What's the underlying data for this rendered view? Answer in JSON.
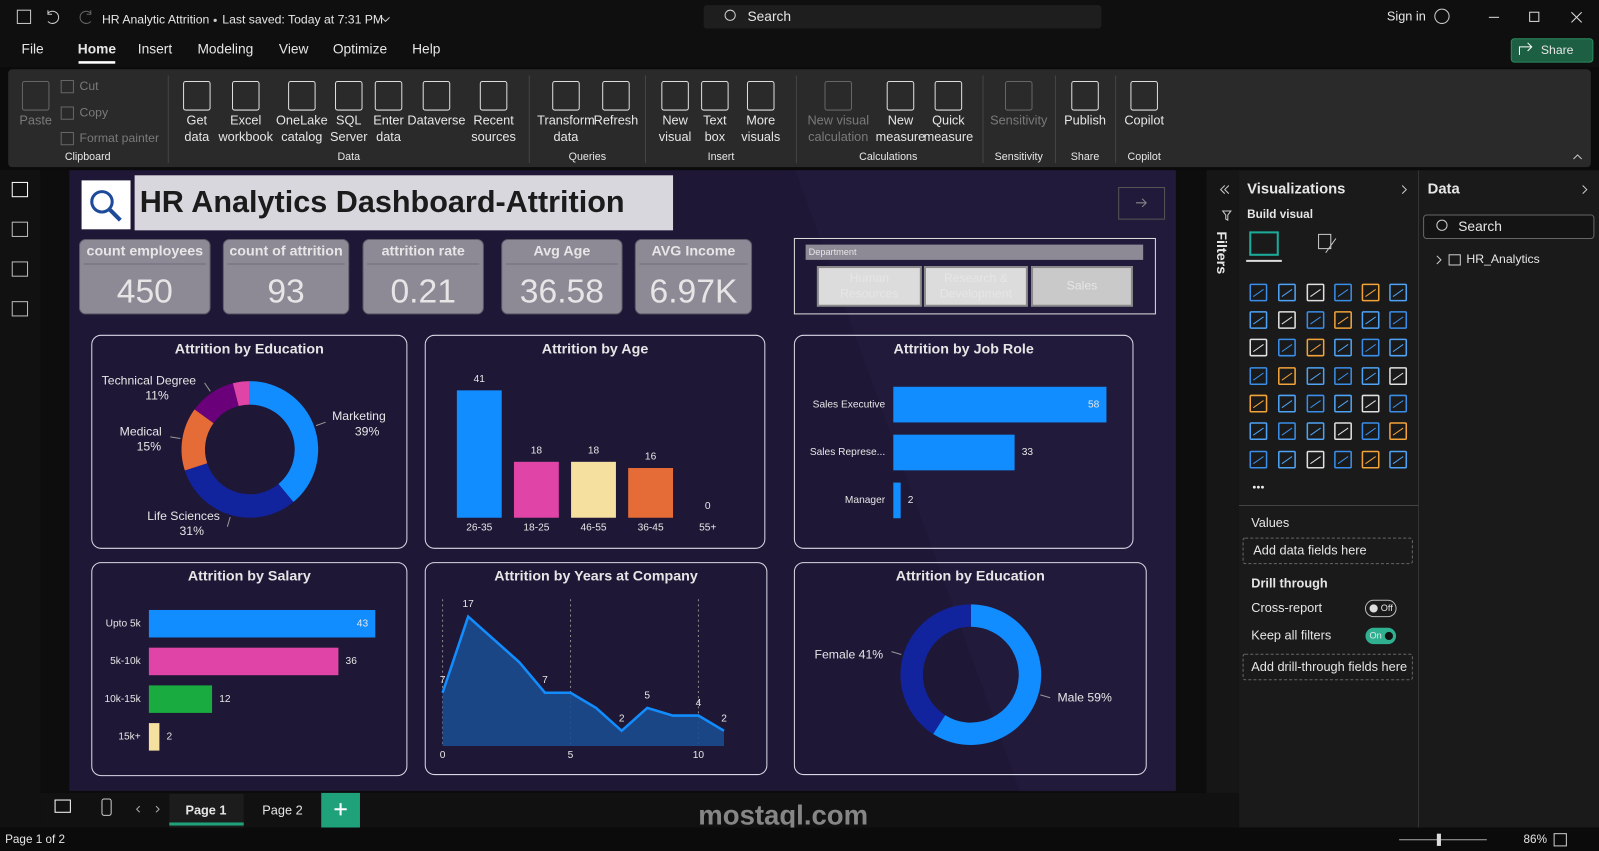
{
  "app": {
    "file_name": "HR Analytic Attrition",
    "saved": "Last saved: Today at 7:31 PM",
    "search": "Search",
    "sign_in": "Sign in",
    "share": "Share"
  },
  "menu": [
    "File",
    "Home",
    "Insert",
    "Modeling",
    "View",
    "Optimize",
    "Help"
  ],
  "ribbon": {
    "groups": [
      {
        "name": "Clipboard",
        "buttons": [
          [
            "Paste"
          ],
          [
            "Cut"
          ],
          [
            "Copy"
          ],
          [
            "Format painter"
          ]
        ]
      },
      {
        "name": "Data",
        "buttons": [
          [
            "Get",
            "data"
          ],
          [
            "Excel",
            "workbook"
          ],
          [
            "OneLake",
            "catalog"
          ],
          [
            "SQL",
            "Server"
          ],
          [
            "Enter",
            "data"
          ],
          [
            "Dataverse"
          ],
          [
            "Recent",
            "sources"
          ]
        ]
      },
      {
        "name": "Queries",
        "buttons": [
          [
            "Transform",
            "data"
          ],
          [
            "Refresh"
          ]
        ]
      },
      {
        "name": "Insert",
        "buttons": [
          [
            "New",
            "visual"
          ],
          [
            "Text",
            "box"
          ],
          [
            "More",
            "visuals"
          ]
        ]
      },
      {
        "name": "Calculations",
        "buttons": [
          [
            "New visual",
            "calculation"
          ],
          [
            "New",
            "measure"
          ],
          [
            "Quick",
            "measure"
          ]
        ]
      },
      {
        "name": "Sensitivity",
        "buttons": [
          [
            "Sensitivity"
          ]
        ]
      },
      {
        "name": "Share",
        "buttons": [
          [
            "Publish"
          ]
        ]
      },
      {
        "name": "Copilot",
        "buttons": [
          [
            "Copilot"
          ]
        ]
      }
    ]
  },
  "report": {
    "title": "HR Analytics Dashboard-Attrition",
    "kpis": [
      {
        "label": "count employees",
        "value": 450
      },
      {
        "label": "count of attrition",
        "value": 93
      },
      {
        "label": "attrition rate",
        "value": 0.21
      },
      {
        "label": "Avg Age",
        "value": 36.58
      },
      {
        "label": "AVG Income",
        "value": "6.97K"
      }
    ],
    "slicer": {
      "title": "Department",
      "items": [
        "Human Resources",
        "Research & Development",
        "Sales"
      ]
    }
  },
  "chart_data": [
    {
      "type": "donut",
      "title": "Attrition by Education",
      "categories": [
        "Marketing",
        "Life Sciences",
        "Medical",
        "Technical Degree",
        null
      ],
      "values": [
        39,
        31,
        15,
        11,
        4
      ],
      "value_labels": [
        "39%",
        "31%",
        "15%",
        "11%",
        null
      ],
      "colors": [
        "#118dff",
        "#12239e",
        "#e66c37",
        "#6b007b",
        "#e044a7"
      ]
    },
    {
      "type": "bar",
      "title": "Attrition by Age",
      "categories": [
        "26-35",
        "18-25",
        "46-55",
        "36-45",
        "55+"
      ],
      "values": [
        41,
        18,
        18,
        16,
        0
      ],
      "colors": [
        "#118dff",
        "#e044a7",
        "#f5e0a0",
        "#e66c37",
        "#8a8a8a"
      ]
    },
    {
      "type": "hbar",
      "title": "Attrition by Job Role",
      "categories": [
        "Sales Executive",
        "Sales Represe...",
        "Manager"
      ],
      "values": [
        58,
        33,
        2
      ],
      "colors": [
        "#118dff",
        "#118dff",
        "#118dff"
      ]
    },
    {
      "type": "hbar",
      "title": "Attrition by Salary",
      "categories": [
        "Upto 5k",
        "5k-10k",
        "10k-15k",
        "15k+"
      ],
      "values": [
        43,
        36,
        12,
        2
      ],
      "colors": [
        "#118dff",
        "#e044a7",
        "#1aab40",
        "#f5e0a0"
      ]
    },
    {
      "type": "area",
      "title": "Attrition by Years at Company",
      "x": [
        0,
        1,
        2,
        3,
        4,
        5,
        6,
        7,
        8,
        9,
        10,
        11
      ],
      "values": [
        7,
        17,
        14,
        11,
        7,
        7,
        5,
        2,
        5,
        4,
        4,
        2
      ],
      "value_labels": [
        7,
        17,
        null,
        null,
        7,
        null,
        null,
        2,
        5,
        null,
        4,
        2
      ],
      "xlim": [
        0,
        11
      ],
      "xticks": [
        0,
        5,
        10
      ],
      "color": "#118dff"
    },
    {
      "type": "donut",
      "title": "Attrition by Education",
      "values": [
        59,
        41
      ],
      "value_labels": [
        "Male 59%",
        "Female 41%"
      ],
      "colors": [
        "#118dff",
        "#12239e"
      ]
    }
  ],
  "filters": {
    "title": "Filters"
  },
  "visualizations": {
    "title": "Visualizations",
    "build": "Build visual",
    "values": "Values",
    "values_placeholder": "Add data fields here",
    "drill_through": "Drill through",
    "cross_report": "Cross-report",
    "cross_report_state": "Off",
    "keep_filters": "Keep all filters",
    "keep_filters_state": "On",
    "drill_placeholder": "Add drill-through fields here"
  },
  "data_pane": {
    "title": "Data",
    "search": "Search",
    "tables": [
      "HR_Analytics"
    ]
  },
  "pages": [
    "Page 1",
    "Page 2"
  ],
  "status": {
    "page": "Page 1 of 2",
    "zoom": "86%"
  },
  "watermark": "mostaql.com"
}
